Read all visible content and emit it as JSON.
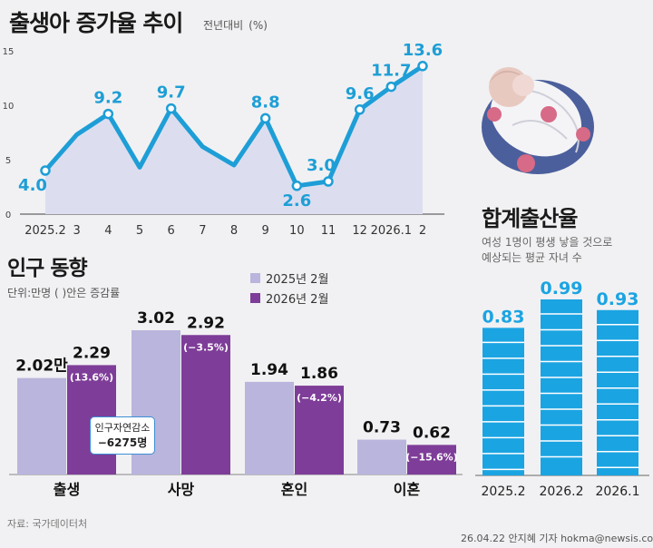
{
  "header": {
    "title": "출생아 증가율 추이",
    "subtitle": "전년대비",
    "unit": "(%)"
  },
  "section2": {
    "title": "인구 동향",
    "unit": "단위:만명 ( )안은  증감률",
    "callout_line1": "인구자연감소",
    "callout_line2": "−6275명"
  },
  "section3": {
    "title": "합계출산율",
    "desc_line1": "여성 1명이 평생 낳을 것으로",
    "desc_line2": "예상되는 평균 자녀 수"
  },
  "footer": {
    "source": "자료: 국가데이터처",
    "credit": "26.04.22 안지혜 기자 hokma@newsis.com"
  },
  "colors": {
    "line": "#1e9ed6",
    "area": "#dcdef0",
    "bar_2025": "#b9b5dc",
    "bar_2026": "#7e3d98",
    "tfr_bar": "#1ba4e2"
  },
  "chart_data": [
    {
      "type": "line",
      "title": "출생아 증가율 추이",
      "ylabel": "(%)",
      "x": [
        "2025.2",
        "3",
        "4",
        "5",
        "6",
        "7",
        "8",
        "9",
        "10",
        "11",
        "12",
        "2026.1",
        "2"
      ],
      "series": [
        {
          "values": [
            4.0,
            7.3,
            9.2,
            4.3,
            9.7,
            6.2,
            4.5,
            8.8,
            2.6,
            3.0,
            9.6,
            11.7,
            13.6
          ]
        }
      ],
      "data_labels": {
        "0": "4.0",
        "2": "9.2",
        "4": "9.7",
        "7": "8.8",
        "8": "2.6",
        "9": "3.0",
        "10": "9.6",
        "11": "11.7",
        "12": "13.6"
      },
      "ylim": [
        0,
        15
      ],
      "yticks": [
        0,
        5,
        10,
        15
      ]
    },
    {
      "type": "bar",
      "title": "인구 동향",
      "categories": [
        "출생",
        "사망",
        "혼인",
        "이혼"
      ],
      "series": [
        {
          "name": "2025년 2월",
          "values": [
            2.02,
            3.02,
            1.94,
            0.73
          ],
          "labels": [
            "2.02만",
            "3.02",
            "1.94",
            "0.73"
          ]
        },
        {
          "name": "2026년 2월",
          "values": [
            2.29,
            2.92,
            1.86,
            0.62
          ],
          "labels": [
            "2.29",
            "2.92",
            "1.86",
            "0.62"
          ],
          "changes": [
            "(13.6%)",
            "(−3.5%)",
            "(−4.2%)",
            "(−15.6%)"
          ]
        }
      ]
    },
    {
      "type": "bar",
      "title": "합계출산율",
      "categories": [
        "2025.2",
        "2026.2",
        "2026.1"
      ],
      "values": [
        0.83,
        0.99,
        0.93
      ],
      "labels": [
        "0.83",
        "0.99",
        "0.93"
      ]
    }
  ]
}
